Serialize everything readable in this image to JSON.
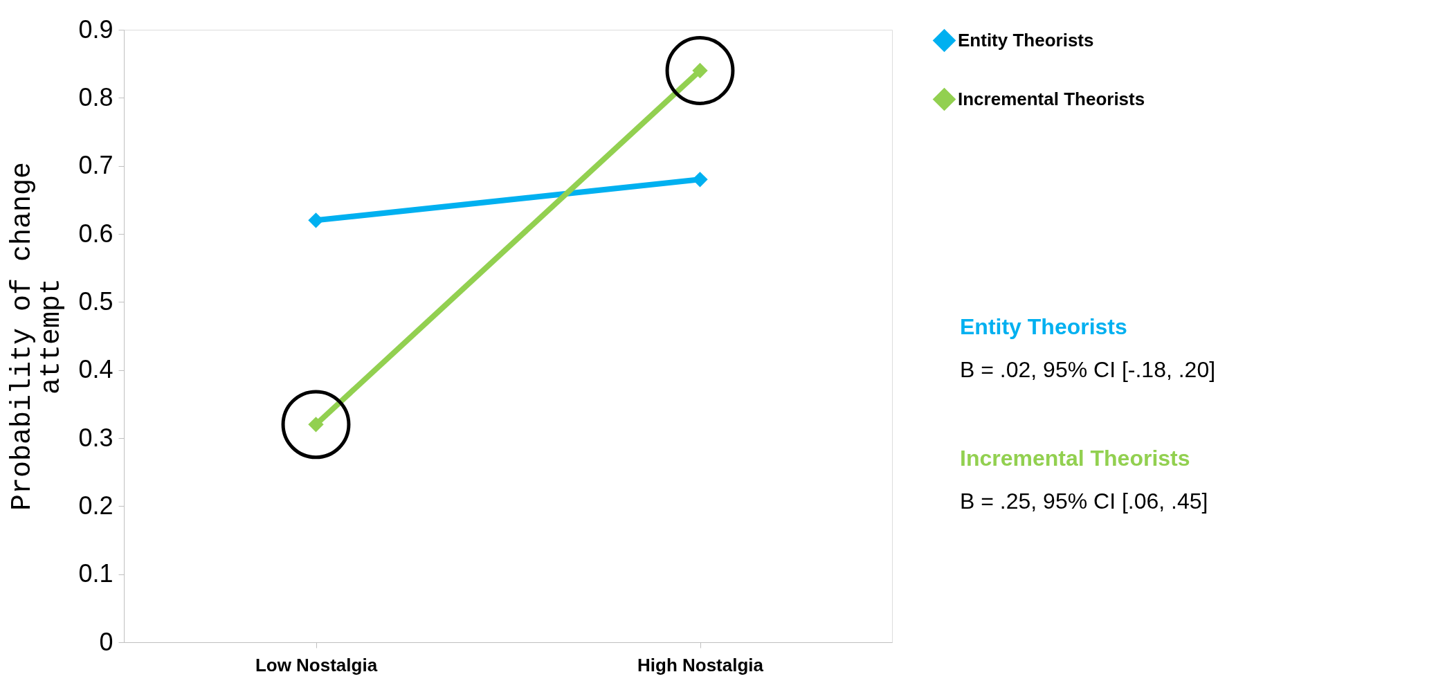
{
  "chart_data": {
    "type": "line",
    "ylabel": "Probability of change attempt",
    "categories": [
      "Low Nostalgia",
      "High Nostalgia"
    ],
    "series": [
      {
        "name": "Entity Theorists",
        "color": "#00b0f0",
        "values": [
          0.62,
          0.68
        ]
      },
      {
        "name": "Incremental Theorists",
        "color": "#92d050",
        "values": [
          0.32,
          0.84
        ]
      }
    ],
    "ylim": [
      0,
      0.9
    ],
    "yticks": [
      0,
      0.1,
      0.2,
      0.3,
      0.4,
      0.5,
      0.6,
      0.7,
      0.8,
      0.9
    ],
    "grid": false,
    "legend": "top right",
    "marker": "diamond",
    "line_style": "solid",
    "annotations": [
      "Entity Theorists",
      "B = .02, 95% CI [-.18, .20]",
      "Incremental Theorists",
      "B = .25, 95% CI [.06, .45]"
    ]
  }
}
